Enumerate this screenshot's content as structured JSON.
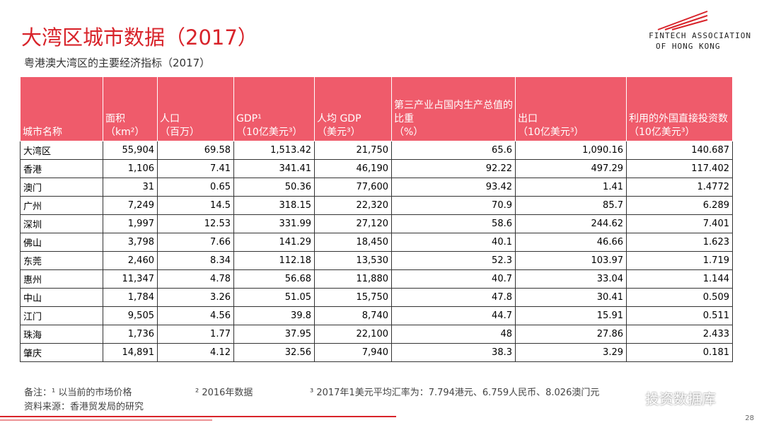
{
  "header": {
    "title": "大湾区城市数据（2017）",
    "subtitle": "粤港澳大湾区的主要经济指标（2017）",
    "logo": [
      "FINTECH ASSOCIATION",
      "OF HONG KONG"
    ]
  },
  "table": {
    "columns": [
      "城市名称",
      "面积\n（km²）",
      "人口\n（百万）",
      "GDP¹\n（10亿美元³）",
      "人均 GDP\n（美元³）",
      "第三产业占国内生产总值的比重\n（%）",
      "出口\n（10亿美元³）",
      "利用的外国直接投资数\n（10亿美元³）"
    ],
    "rows": [
      [
        "大湾区",
        "55,904",
        "69.58",
        "1,513.42",
        "21,750",
        "65.6",
        "1,090.16",
        "140.687"
      ],
      [
        "香港",
        "1,106",
        "7.41",
        "341.41",
        "46,190",
        "92.22",
        "497.29",
        "117.402"
      ],
      [
        "澳门",
        "31",
        "0.65",
        "50.36",
        "77,600",
        "93.42",
        "1.41",
        "1.4772"
      ],
      [
        "广州",
        "7,249",
        "14.5",
        "318.15",
        "22,320",
        "70.9",
        "85.7",
        "6.289"
      ],
      [
        "深圳",
        "1,997",
        "12.53",
        "331.99",
        "27,120",
        "58.6",
        "244.62",
        "7.401"
      ],
      [
        "佛山",
        "3,798",
        "7.66",
        "141.29",
        "18,450",
        "40.1",
        "46.66",
        "1.623"
      ],
      [
        "东莞",
        "2,460",
        "8.34",
        "112.18",
        "13,530",
        "52.3",
        "103.97",
        "1.719"
      ],
      [
        "惠州",
        "11,347",
        "4.78",
        "56.68",
        "11,880",
        "40.7",
        "33.04",
        "1.144"
      ],
      [
        "中山",
        "1,784",
        "3.26",
        "51.05",
        "15,750",
        "47.8",
        "30.41",
        "0.509"
      ],
      [
        "江门",
        "9,505",
        "4.56",
        "39.8",
        "8,740",
        "44.7",
        "15.91",
        "0.511"
      ],
      [
        "珠海",
        "1,736",
        "1.77",
        "37.95",
        "22,100",
        "48",
        "27.86",
        "2.433"
      ],
      [
        "肇庆",
        "14,891",
        "4.12",
        "32.56",
        "7,940",
        "38.3",
        "3.29",
        "0.181"
      ]
    ]
  },
  "footer": {
    "notes": [
      "备注：¹ 以当前的市场价格",
      "² 2016年数据",
      "³ 2017年1美元平均汇率为：7.794港元、6.759人民币、8.026澳门元"
    ],
    "source": "资料来源：香港贸发局的研究",
    "watermark": "投资数据库",
    "page": "28"
  }
}
